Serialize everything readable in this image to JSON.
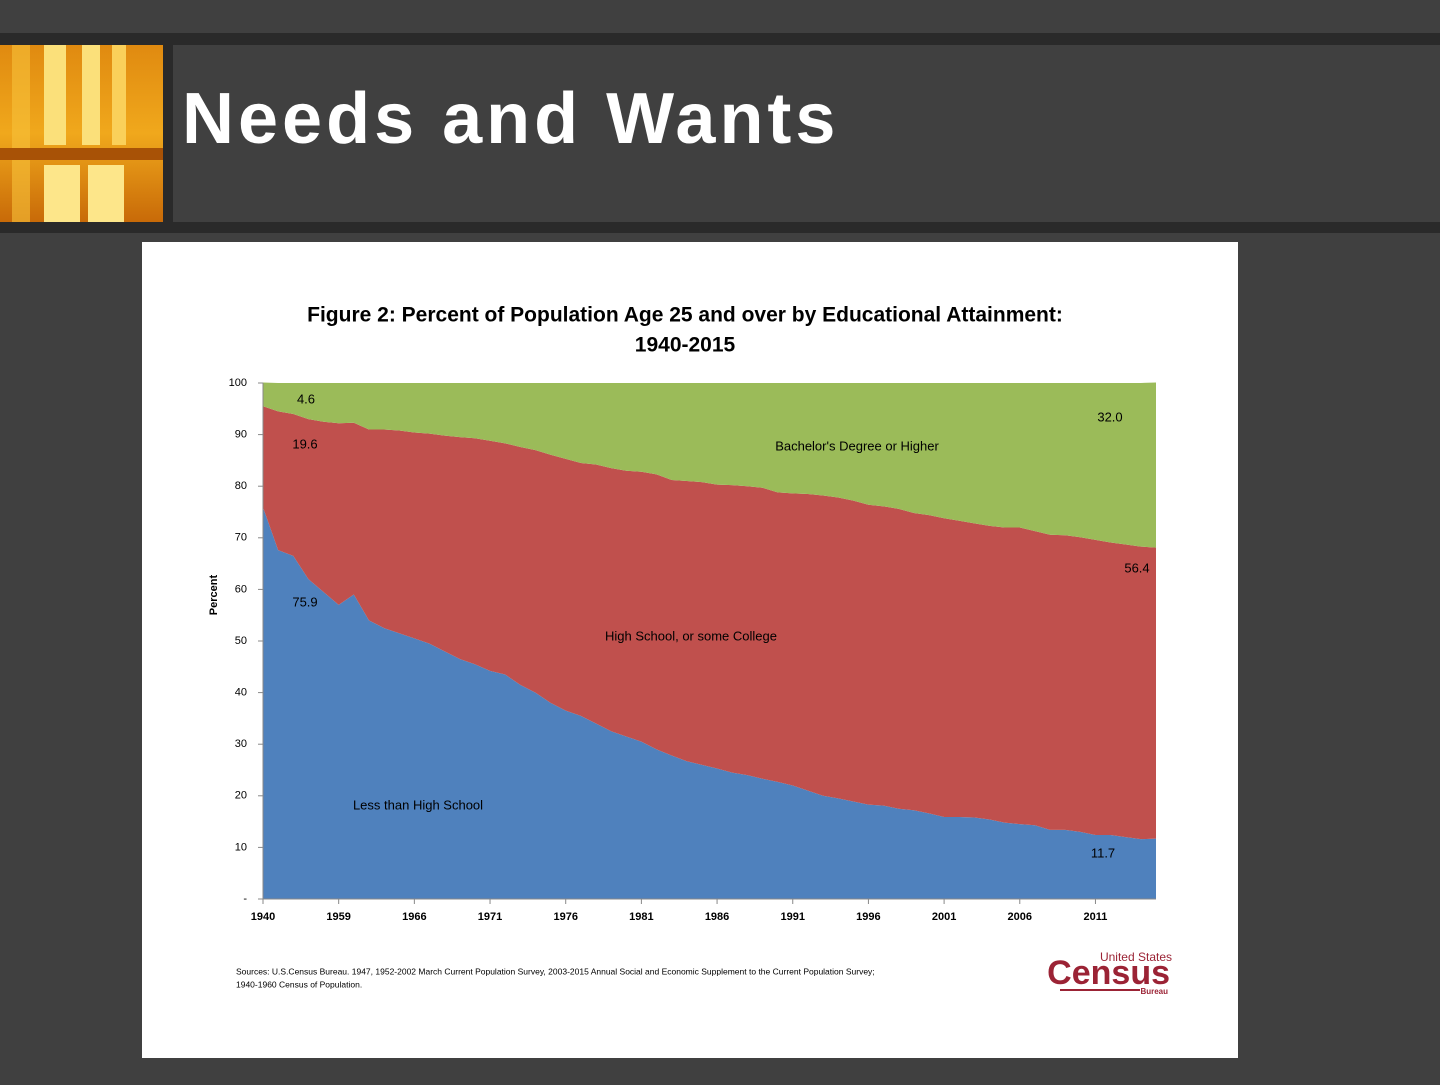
{
  "slide_title": "Needs and Wants",
  "chart_data": {
    "type": "stacked-area",
    "title": [
      "Figure 2: Percent of Population Age 25 and over by Educational Attainment:",
      "1940-2015"
    ],
    "y_label": "Percent",
    "categories": [
      "1940",
      null,
      null,
      null,
      null,
      "1959",
      null,
      null,
      null,
      null,
      "1966",
      null,
      null,
      null,
      null,
      "1971",
      null,
      null,
      null,
      null,
      "1976",
      null,
      null,
      null,
      null,
      "1981",
      null,
      null,
      null,
      null,
      "1986",
      null,
      null,
      null,
      null,
      "1991",
      null,
      null,
      null,
      null,
      "1996",
      null,
      null,
      null,
      null,
      "2001",
      null,
      null,
      null,
      null,
      "2006",
      null,
      null,
      null,
      null,
      "2011",
      null,
      null,
      null,
      null
    ],
    "ylim": [
      0,
      100
    ],
    "yticks": [
      {
        "value": 0,
        "label": "-"
      },
      10,
      20,
      30,
      40,
      50,
      60,
      70,
      80,
      90,
      100
    ],
    "series": [
      {
        "name": "Less than High School",
        "color": "#4f81bd",
        "values": [
          75.9,
          67.6,
          66.5,
          62,
          59.5,
          57,
          59,
          54,
          52.5,
          51.5,
          50.5,
          49.5,
          48,
          46.5,
          45.5,
          44.2,
          43.5,
          41.5,
          40,
          38,
          36.5,
          35.5,
          34,
          32.5,
          31.5,
          30.5,
          29,
          27.8,
          26.7,
          26,
          25.3,
          24.5,
          24,
          23.3,
          22.7,
          22,
          21,
          20,
          19.5,
          18.9,
          18.3,
          18.1,
          17.5,
          17.2,
          16.6,
          15.9,
          15.9,
          15.8,
          15.4,
          14.8,
          14.5,
          14.3,
          13.4,
          13.4,
          13,
          12.4,
          12.4,
          12,
          11.6,
          11.7
        ],
        "value_labels": [
          "75.9",
          null,
          null,
          null,
          null,
          null,
          null,
          null,
          null,
          null,
          null,
          null,
          null,
          null,
          null,
          null,
          null,
          null,
          null,
          null,
          null,
          null,
          null,
          null,
          null,
          null,
          null,
          null,
          null,
          null,
          null,
          null,
          null,
          null,
          null,
          null,
          null,
          null,
          null,
          null,
          null,
          null,
          null,
          null,
          null,
          null,
          null,
          null,
          null,
          null,
          null,
          null,
          null,
          null,
          null,
          null,
          null,
          null,
          null,
          "11.7"
        ]
      },
      {
        "name": "High School, or some College",
        "color": "#c0504d",
        "values": [
          19.6,
          26.9,
          27.5,
          31,
          33,
          35.2,
          33.3,
          37,
          38.5,
          39.3,
          39.9,
          40.7,
          41.8,
          43,
          43.8,
          44.6,
          44.8,
          46.1,
          47,
          48.1,
          48.8,
          49,
          50.2,
          51,
          51.5,
          52.3,
          53.3,
          53.4,
          54.3,
          54.8,
          55,
          55.7,
          56,
          56.4,
          56.1,
          56.6,
          57.5,
          58.2,
          58.3,
          58.3,
          58.1,
          58,
          58.1,
          57.6,
          57.8,
          57.9,
          57.4,
          57,
          56.9,
          57.2,
          57.5,
          57,
          57.2,
          57.1,
          57.1,
          57.2,
          56.7,
          56.7,
          56.7,
          56.4
        ],
        "value_labels": [
          "19.6",
          null,
          null,
          null,
          null,
          null,
          null,
          null,
          null,
          null,
          null,
          null,
          null,
          null,
          null,
          null,
          null,
          null,
          null,
          null,
          null,
          null,
          null,
          null,
          null,
          null,
          null,
          null,
          null,
          null,
          null,
          null,
          null,
          null,
          null,
          null,
          null,
          null,
          null,
          null,
          null,
          null,
          null,
          null,
          null,
          null,
          null,
          null,
          null,
          null,
          null,
          null,
          null,
          null,
          null,
          null,
          null,
          null,
          null,
          "56.4"
        ]
      },
      {
        "name": "Bachelor's Degree or Higher",
        "color": "#9bbb59",
        "values": [
          4.6,
          5.5,
          6,
          7,
          7.5,
          7.8,
          7.7,
          9,
          9,
          9.2,
          9.6,
          9.8,
          10.2,
          10.5,
          10.7,
          11.2,
          11.7,
          12.4,
          13,
          13.9,
          14.7,
          15.5,
          15.8,
          16.5,
          17,
          17.2,
          17.7,
          18.8,
          19,
          19.2,
          19.7,
          19.8,
          20,
          20.3,
          21.2,
          21.4,
          21.5,
          21.8,
          22.2,
          22.8,
          23.6,
          23.9,
          24.4,
          25.2,
          25.6,
          26.2,
          26.7,
          27.2,
          27.7,
          28,
          28,
          28.7,
          29.4,
          29.5,
          29.9,
          30.4,
          30.9,
          31.3,
          31.7,
          32
        ],
        "value_labels": [
          "4.6",
          null,
          null,
          null,
          null,
          null,
          null,
          null,
          null,
          null,
          null,
          null,
          null,
          null,
          null,
          null,
          null,
          null,
          null,
          null,
          null,
          null,
          null,
          null,
          null,
          null,
          null,
          null,
          null,
          null,
          null,
          null,
          null,
          null,
          null,
          null,
          null,
          null,
          null,
          null,
          null,
          null,
          null,
          null,
          null,
          null,
          null,
          null,
          null,
          null,
          null,
          null,
          null,
          null,
          null,
          null,
          null,
          null,
          null,
          "32.0"
        ]
      }
    ],
    "sources": [
      "Sources:  U.S.Census Bureau. 1947, 1952-2002 March Current Population Survey, 2003-2015 Annual Social and Economic Supplement to the Current Population Survey;",
      "1940-1960 Census of Population."
    ],
    "logo": {
      "top": "United States",
      "main": "Census",
      "bottom": "Bureau"
    }
  }
}
